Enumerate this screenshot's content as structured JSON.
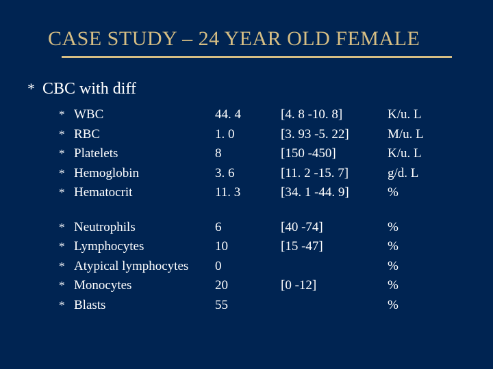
{
  "colors": {
    "slide_bg": "#002452",
    "title_color": "#d6be84",
    "underline_color": "#d6be84",
    "text_color": "#ffffff"
  },
  "title": "CASE STUDY – 24 YEAR OLD FEMALE",
  "heading": "CBC with diff",
  "group1": [
    {
      "name": "WBC",
      "value": "44. 4",
      "range": "[4. 8 -10. 8]",
      "unit": "K/u. L"
    },
    {
      "name": "RBC",
      "value": "1. 0",
      "range": "[3. 93 -5. 22]",
      "unit": "M/u. L"
    },
    {
      "name": "Platelets",
      "value": "8",
      "range": "[150 -450]",
      "unit": "K/u. L"
    },
    {
      "name": "Hemoglobin",
      "value": "3. 6",
      "range": "[11. 2 -15. 7]",
      "unit": "g/d. L"
    },
    {
      "name": "Hematocrit",
      "value": "11. 3",
      "range": "[34. 1 -44. 9]",
      "unit": "%"
    }
  ],
  "group2": [
    {
      "name": "Neutrophils",
      "value": "6",
      "range": "[40 -74]",
      "unit": "%"
    },
    {
      "name": "Lymphocytes",
      "value": "10",
      "range": "[15 -47]",
      "unit": "%"
    },
    {
      "name": "Atypical lymphocytes",
      "value": "0",
      "range": "",
      "unit": "%"
    },
    {
      "name": "Monocytes",
      "value": "20",
      "range": "[0 -12]",
      "unit": "%"
    },
    {
      "name": "Blasts",
      "value": "55",
      "range": "",
      "unit": "%"
    }
  ]
}
